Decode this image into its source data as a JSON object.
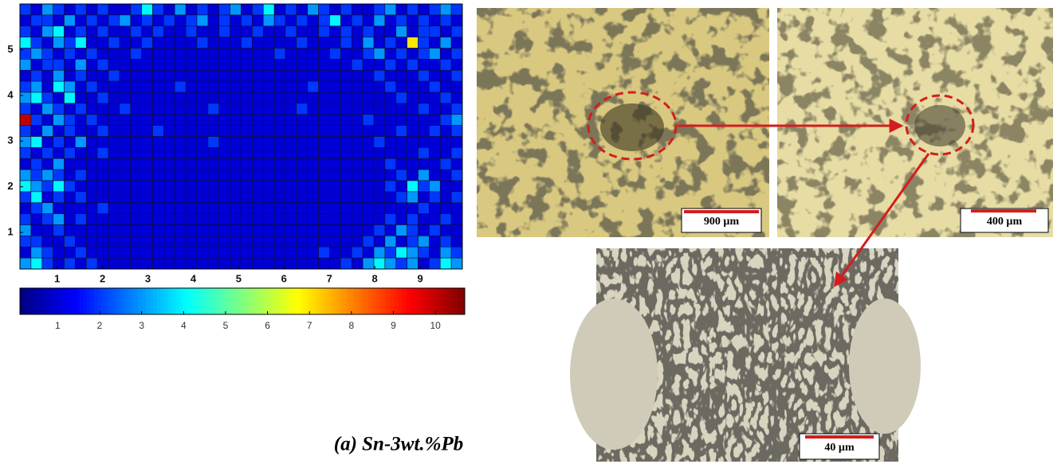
{
  "chart_data": {
    "type": "heatmap",
    "colormap": "jet",
    "xlim": [
      0.18,
      9.93
    ],
    "xticks": [
      1,
      2,
      3,
      4,
      5,
      6,
      7,
      8,
      9
    ],
    "ylim": [
      0.2,
      6
    ],
    "yticks": [
      1,
      2,
      3,
      4,
      5
    ],
    "clim": [
      0.1,
      10.7
    ],
    "cticks": [
      1,
      2,
      3,
      4,
      5,
      6,
      7,
      8,
      9,
      10
    ],
    "z": [
      [
        2,
        1,
        3,
        2,
        1,
        2,
        1,
        2,
        1,
        1,
        2,
        4,
        2,
        1,
        3,
        1,
        2,
        1,
        2,
        3,
        1,
        2,
        4,
        1,
        2,
        1,
        3,
        2,
        1,
        2,
        1,
        1,
        2,
        3,
        1,
        2,
        1,
        2,
        3,
        2
      ],
      [
        1,
        2,
        2,
        1,
        3,
        1,
        2,
        1,
        2,
        3,
        1,
        2,
        1,
        2,
        1,
        2,
        3,
        1,
        2,
        1,
        2,
        1,
        3,
        2,
        1,
        2,
        1,
        2,
        4,
        1,
        2,
        1,
        3,
        1,
        2,
        1,
        2,
        1,
        2,
        1
      ],
      [
        2,
        1,
        3,
        4,
        1,
        2,
        1,
        2,
        1,
        1,
        2,
        1,
        2,
        1,
        1,
        2,
        1,
        1,
        2,
        1,
        1,
        2,
        1,
        1,
        2,
        1,
        1,
        2,
        1,
        2,
        1,
        2,
        1,
        1,
        3,
        1,
        2,
        2,
        1,
        2
      ],
      [
        4,
        2,
        1,
        3,
        2,
        4,
        1,
        1,
        2,
        1,
        1,
        2,
        1,
        1,
        1,
        1,
        2,
        1,
        1,
        1,
        2,
        1,
        1,
        1,
        1,
        2,
        1,
        1,
        1,
        2,
        1,
        3,
        1,
        2,
        1,
        7,
        2,
        1,
        3,
        1
      ],
      [
        2,
        3,
        2,
        1,
        2,
        1,
        2,
        1,
        1,
        1,
        2,
        1,
        1,
        1,
        1,
        1,
        1,
        1,
        1,
        1,
        1,
        1,
        1,
        2,
        1,
        1,
        1,
        1,
        2,
        1,
        1,
        2,
        3,
        1,
        2,
        1,
        2,
        3,
        1,
        2
      ],
      [
        3,
        1,
        2,
        2,
        1,
        3,
        1,
        2,
        1,
        1,
        1,
        1,
        1,
        1,
        1,
        1,
        1,
        1,
        1,
        1,
        1,
        1,
        1,
        1,
        1,
        1,
        1,
        1,
        1,
        1,
        2,
        1,
        1,
        2,
        1,
        2,
        1,
        1,
        2,
        1
      ],
      [
        1,
        2,
        1,
        3,
        1,
        2,
        1,
        1,
        2,
        1,
        1,
        1,
        1,
        1,
        1,
        1,
        1,
        1,
        1,
        1,
        1,
        1,
        1,
        1,
        1,
        1,
        1,
        1,
        1,
        1,
        1,
        1,
        2,
        1,
        1,
        1,
        2,
        1,
        1,
        2
      ],
      [
        2,
        3,
        1,
        4,
        3,
        1,
        2,
        1,
        1,
        1,
        1,
        1,
        1,
        1,
        2,
        1,
        1,
        1,
        1,
        1,
        1,
        1,
        1,
        1,
        1,
        1,
        2,
        1,
        1,
        1,
        1,
        1,
        1,
        2,
        1,
        1,
        1,
        2,
        1,
        1
      ],
      [
        3,
        4,
        2,
        1,
        4,
        1,
        1,
        2,
        1,
        1,
        1,
        1,
        1,
        1,
        1,
        1,
        1,
        1,
        1,
        1,
        1,
        1,
        1,
        1,
        1,
        1,
        1,
        1,
        1,
        1,
        1,
        1,
        1,
        1,
        2,
        1,
        1,
        1,
        2,
        1
      ],
      [
        2,
        1,
        3,
        2,
        1,
        2,
        1,
        1,
        1,
        2,
        1,
        1,
        1,
        1,
        1,
        1,
        1,
        2,
        1,
        1,
        1,
        1,
        1,
        1,
        1,
        2,
        1,
        1,
        1,
        1,
        1,
        1,
        1,
        1,
        1,
        1,
        2,
        1,
        1,
        2
      ],
      [
        10,
        2,
        1,
        3,
        2,
        1,
        2,
        1,
        1,
        1,
        1,
        1,
        1,
        1,
        1,
        1,
        1,
        1,
        1,
        1,
        1,
        1,
        1,
        1,
        1,
        1,
        1,
        1,
        1,
        1,
        1,
        2,
        1,
        1,
        1,
        1,
        1,
        1,
        2,
        3
      ],
      [
        2,
        1,
        3,
        1,
        2,
        1,
        1,
        2,
        1,
        1,
        1,
        1,
        2,
        1,
        1,
        1,
        1,
        1,
        1,
        1,
        1,
        1,
        1,
        1,
        1,
        1,
        1,
        1,
        1,
        1,
        1,
        1,
        1,
        1,
        2,
        1,
        1,
        2,
        1,
        2
      ],
      [
        3,
        4,
        1,
        2,
        1,
        3,
        1,
        1,
        1,
        1,
        1,
        1,
        1,
        1,
        1,
        1,
        1,
        2,
        1,
        1,
        1,
        1,
        1,
        1,
        1,
        1,
        1,
        1,
        1,
        1,
        1,
        1,
        2,
        1,
        1,
        1,
        1,
        1,
        1,
        1
      ],
      [
        2,
        1,
        2,
        1,
        2,
        1,
        1,
        2,
        1,
        1,
        1,
        1,
        1,
        1,
        1,
        1,
        1,
        1,
        1,
        1,
        1,
        1,
        1,
        1,
        1,
        1,
        1,
        1,
        1,
        1,
        1,
        1,
        1,
        1,
        1,
        1,
        2,
        1,
        1,
        2
      ],
      [
        1,
        2,
        1,
        3,
        1,
        1,
        1,
        1,
        1,
        1,
        1,
        1,
        1,
        1,
        1,
        1,
        1,
        1,
        1,
        1,
        1,
        1,
        1,
        1,
        1,
        1,
        1,
        1,
        1,
        1,
        1,
        1,
        1,
        2,
        1,
        1,
        1,
        1,
        2,
        1
      ],
      [
        3,
        2,
        3,
        2,
        1,
        2,
        1,
        1,
        1,
        1,
        1,
        1,
        1,
        1,
        1,
        1,
        1,
        1,
        1,
        1,
        1,
        1,
        1,
        1,
        1,
        1,
        1,
        1,
        1,
        1,
        1,
        1,
        1,
        1,
        2,
        1,
        3,
        1,
        1,
        2
      ],
      [
        4,
        3,
        2,
        4,
        2,
        1,
        1,
        1,
        1,
        1,
        1,
        1,
        1,
        1,
        1,
        1,
        1,
        1,
        1,
        1,
        1,
        1,
        1,
        1,
        1,
        1,
        1,
        1,
        1,
        1,
        1,
        1,
        1,
        2,
        1,
        4,
        2,
        3,
        1,
        1
      ],
      [
        2,
        4,
        1,
        2,
        1,
        2,
        1,
        1,
        1,
        1,
        1,
        1,
        1,
        1,
        1,
        1,
        1,
        1,
        1,
        1,
        1,
        1,
        1,
        1,
        1,
        1,
        1,
        1,
        1,
        1,
        1,
        1,
        1,
        1,
        2,
        3,
        1,
        2,
        1,
        2
      ],
      [
        1,
        2,
        3,
        1,
        1,
        1,
        1,
        2,
        1,
        1,
        1,
        1,
        1,
        1,
        1,
        1,
        1,
        1,
        1,
        1,
        1,
        1,
        1,
        1,
        1,
        1,
        1,
        1,
        1,
        1,
        1,
        1,
        1,
        1,
        1,
        1,
        2,
        1,
        1,
        1
      ],
      [
        2,
        1,
        2,
        3,
        1,
        2,
        1,
        1,
        1,
        1,
        1,
        1,
        1,
        1,
        1,
        1,
        1,
        1,
        1,
        1,
        1,
        1,
        1,
        1,
        1,
        1,
        1,
        1,
        1,
        1,
        1,
        1,
        1,
        2,
        1,
        2,
        1,
        1,
        2,
        1
      ],
      [
        3,
        1,
        1,
        2,
        1,
        1,
        1,
        1,
        1,
        1,
        1,
        1,
        1,
        1,
        1,
        1,
        1,
        1,
        1,
        1,
        1,
        1,
        1,
        1,
        1,
        1,
        1,
        1,
        1,
        1,
        1,
        1,
        2,
        1,
        3,
        2,
        1,
        2,
        1,
        1
      ],
      [
        2,
        2,
        1,
        1,
        2,
        1,
        1,
        1,
        1,
        1,
        1,
        1,
        1,
        1,
        1,
        1,
        1,
        1,
        1,
        1,
        1,
        1,
        1,
        1,
        1,
        1,
        1,
        1,
        1,
        1,
        1,
        2,
        1,
        3,
        1,
        2,
        3,
        1,
        2,
        1
      ],
      [
        1,
        3,
        2,
        1,
        1,
        2,
        1,
        1,
        1,
        1,
        1,
        1,
        1,
        1,
        1,
        1,
        1,
        1,
        1,
        1,
        1,
        1,
        1,
        1,
        1,
        1,
        1,
        2,
        1,
        1,
        2,
        1,
        3,
        2,
        4,
        3,
        2,
        1,
        3,
        2
      ],
      [
        3,
        4,
        2,
        1,
        2,
        1,
        2,
        1,
        1,
        1,
        1,
        1,
        1,
        1,
        1,
        1,
        1,
        1,
        1,
        1,
        1,
        1,
        1,
        1,
        1,
        1,
        1,
        1,
        1,
        2,
        1,
        3,
        4,
        3,
        2,
        3,
        1,
        2,
        4,
        3
      ]
    ]
  },
  "figure": {
    "caption": "(a) Sn-3wt.%Pb",
    "micrographs": [
      {
        "scale_label": "900 µm"
      },
      {
        "scale_label": "400 µm"
      },
      {
        "scale_label": "40 µm"
      }
    ]
  }
}
